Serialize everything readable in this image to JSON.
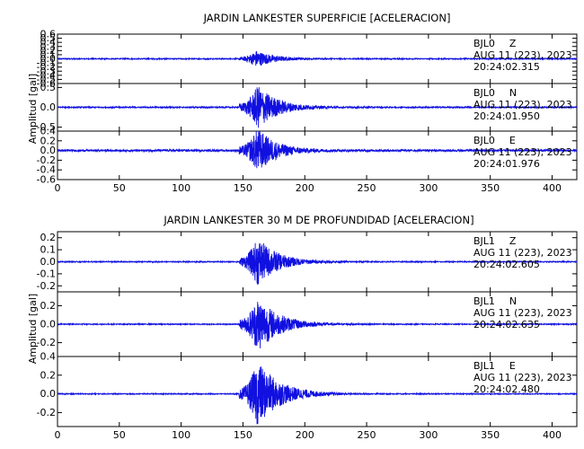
{
  "chart_data": [
    {
      "type": "line",
      "title": "JARDIN LANKESTER SUPERFICIE [ACELERACION]",
      "ylabel": "Amplitud [gal]",
      "xlim": [
        0,
        420
      ],
      "x_ticks": [
        "0",
        "50",
        "100",
        "150",
        "200",
        "250",
        "300",
        "350",
        "400"
      ],
      "panels": [
        {
          "station": "BJL0",
          "component": "Z",
          "date_text": "AUG 11 (223), 2023",
          "time_text": "20:24:02.315",
          "ylim": [
            -0.6,
            0.6
          ],
          "y_ticks": [
            "0.6",
            "0.5",
            "0.4",
            "0.3",
            "0.2",
            "0.1",
            "0.0",
            "-0.1",
            "-0.2",
            "-0.3",
            "-0.4",
            "-0.5",
            "-0.6"
          ],
          "signal": {
            "noise": 0.012,
            "onset": 147,
            "peak_time": 161,
            "peak_amp": 0.2,
            "decay": 14
          }
        },
        {
          "station": "BJL0",
          "component": "N",
          "date_text": "AUG 11 (223), 2023",
          "time_text": "20:24:01.950",
          "ylim": [
            -0.6,
            0.6
          ],
          "y_ticks": [
            "0.5",
            "0.0",
            "-0.5"
          ],
          "signal": {
            "noise": 0.015,
            "onset": 147,
            "peak_time": 162,
            "peak_amp": 0.55,
            "decay": 16
          }
        },
        {
          "station": "BJL0",
          "component": "E",
          "date_text": "AUG 11 (223), 2023",
          "time_text": "20:24:01.976",
          "ylim": [
            -0.6,
            0.4
          ],
          "y_ticks": [
            "0.4",
            "0.2",
            "0.0",
            "-0.2",
            "-0.4",
            "-0.6"
          ],
          "signal": {
            "noise": 0.02,
            "onset": 147,
            "peak_time": 162,
            "peak_amp": 0.45,
            "decay": 15
          }
        }
      ]
    },
    {
      "type": "line",
      "title": "JARDIN LANKESTER 30 M DE PROFUNDIDAD [ACELERACION]",
      "ylabel": "Amplitud [gal]",
      "xlim": [
        0,
        420
      ],
      "x_ticks": [
        "0",
        "50",
        "100",
        "150",
        "200",
        "250",
        "300",
        "350",
        "400"
      ],
      "panels": [
        {
          "station": "BJL1",
          "component": "Z",
          "date_text": "AUG 11 (223), 2023",
          "time_text": "20:24:02.605",
          "ylim": [
            -0.25,
            0.25
          ],
          "y_ticks": [
            "0.2",
            "0.1",
            "0.0",
            "-0.1",
            "-0.2"
          ],
          "signal": {
            "noise": 0.004,
            "onset": 147,
            "peak_time": 162,
            "peak_amp": 0.2,
            "decay": 16
          }
        },
        {
          "station": "BJL1",
          "component": "N",
          "date_text": "AUG 11 (223), 2023",
          "time_text": "20:24:02.635",
          "ylim": [
            -0.35,
            0.35
          ],
          "y_ticks": [
            "0.2",
            "0.0",
            "-0.2"
          ],
          "signal": {
            "noise": 0.005,
            "onset": 147,
            "peak_time": 162,
            "peak_amp": 0.3,
            "decay": 17
          }
        },
        {
          "station": "BJL1",
          "component": "E",
          "date_text": "AUG 11 (223), 2023",
          "time_text": "20:24:02.480",
          "ylim": [
            -0.35,
            0.4
          ],
          "y_ticks": [
            "0.4",
            "0.2",
            "0.0",
            "-0.2"
          ],
          "signal": {
            "noise": 0.005,
            "onset": 147,
            "peak_time": 162,
            "peak_amp": 0.35,
            "decay": 18
          }
        }
      ]
    }
  ],
  "colors": {
    "trace": "#1010e0",
    "axis": "#000000"
  }
}
